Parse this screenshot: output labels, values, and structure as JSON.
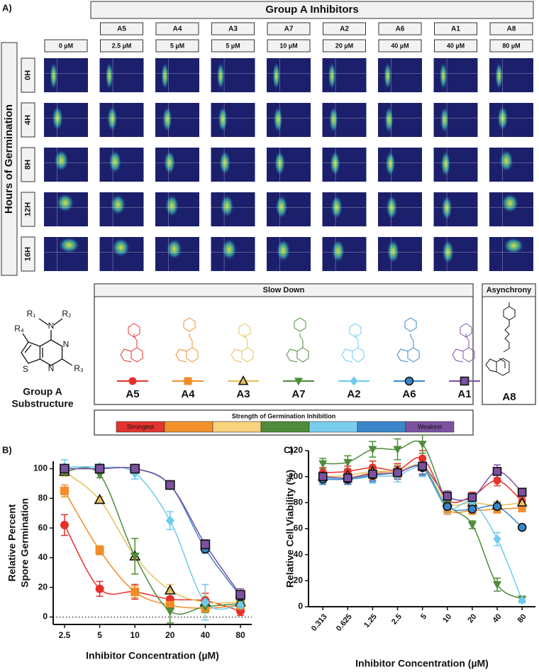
{
  "panel_a": {
    "label": "A)",
    "title": "Group A Inhibitors",
    "row_title": "Hours of Germination",
    "columns": [
      {
        "concentration": "0 µM"
      },
      {
        "inhibitor": "A5",
        "concentration": "2.5 µM"
      },
      {
        "inhibitor": "A4",
        "concentration": "5 µM"
      },
      {
        "inhibitor": "A3",
        "concentration": "5 µM"
      },
      {
        "inhibitor": "A7",
        "concentration": "10 µM"
      },
      {
        "inhibitor": "A2",
        "concentration": "20 µM"
      },
      {
        "inhibitor": "A6",
        "concentration": "40 µM"
      },
      {
        "inhibitor": "A1",
        "concentration": "40 µM"
      },
      {
        "inhibitor": "A8",
        "concentration": "80 µM"
      }
    ],
    "rows": [
      "0H",
      "4H",
      "8H",
      "12H",
      "16H"
    ]
  },
  "substructure": {
    "atoms": [
      "R₁",
      "N",
      "R₂",
      "R₄",
      "N",
      "S",
      "N",
      "R₃"
    ],
    "label": [
      "Group A",
      "Substructure"
    ]
  },
  "slow_down": {
    "title": "Slow Down",
    "compounds": [
      {
        "name": "A5",
        "color": "#e8302a",
        "marker": "circle"
      },
      {
        "name": "A4",
        "color": "#f28c28",
        "marker": "square"
      },
      {
        "name": "A3",
        "color": "#e6c25a",
        "marker": "triangle-up-outlined"
      },
      {
        "name": "A7",
        "color": "#4e8b3a",
        "marker": "triangle-down"
      },
      {
        "name": "A2",
        "color": "#6ccbef",
        "marker": "diamond"
      },
      {
        "name": "A6",
        "color": "#3a86c8",
        "marker": "circle-outlined"
      },
      {
        "name": "A1",
        "color": "#7c51a1",
        "marker": "square-outlined"
      }
    ]
  },
  "asynchrony": {
    "title": "Asynchrony",
    "compound": "A8"
  },
  "strength": {
    "title": "Strength of Germination Inhibition",
    "low": "Strongest",
    "high": "Weakest",
    "colors": [
      "#e3342f",
      "#f3922b",
      "#f8d27c",
      "#4e8b3a",
      "#7bcdef",
      "#3a86c8",
      "#7c51a1"
    ]
  },
  "chart_data": [
    {
      "type": "scatter",
      "label": "B)",
      "y_label": [
        "Relative Percent",
        "Spore Germination"
      ],
      "x_label": "Inhibitor Concentration (µM)",
      "x_scale": "log",
      "x": [
        2.5,
        5,
        10,
        20,
        40,
        80
      ],
      "xlim": [
        2,
        100
      ],
      "xticks": [
        2.5,
        5,
        10,
        20,
        40,
        80
      ],
      "ylim": [
        -5,
        105
      ],
      "yticks": [
        0,
        20,
        40,
        60,
        80,
        100
      ],
      "reference_line": {
        "y": 0,
        "style": "dotted"
      },
      "series": [
        {
          "name": "A5",
          "values": [
            62,
            19,
            17,
            12,
            11,
            4
          ],
          "errors": [
            7,
            5,
            5,
            4,
            5,
            3
          ]
        },
        {
          "name": "A4",
          "values": [
            85,
            45,
            17,
            8,
            6,
            8
          ],
          "errors": [
            4,
            3,
            4,
            3,
            3,
            3
          ]
        },
        {
          "name": "A3",
          "values": [
            98,
            79,
            41,
            18,
            10,
            10
          ],
          "errors": [
            3,
            2,
            12,
            4,
            4,
            3
          ]
        },
        {
          "name": "A7",
          "values": [
            98,
            96,
            41,
            4,
            7,
            9
          ],
          "errors": [
            2,
            2,
            12,
            8,
            4,
            4
          ]
        },
        {
          "name": "A2",
          "values": [
            101,
            101,
            97,
            65,
            10,
            8
          ],
          "errors": [
            5,
            2,
            4,
            6,
            12,
            4
          ]
        },
        {
          "name": "A6",
          "values": [
            100,
            100,
            100,
            89,
            46,
            14
          ],
          "errors": [
            2,
            2,
            2,
            2,
            3,
            3
          ]
        },
        {
          "name": "A1",
          "values": [
            100,
            100,
            100,
            89,
            49,
            15
          ],
          "errors": [
            2,
            2,
            2,
            2,
            3,
            4
          ]
        }
      ]
    },
    {
      "type": "scatter",
      "label": "C)",
      "y_label": [
        "Relative Cell Viability (%)"
      ],
      "x_label": "Inhibitor Concentration (µM)",
      "x_scale": "log",
      "x": [
        0.313,
        0.625,
        1.25,
        2.5,
        5,
        10,
        20,
        40,
        80
      ],
      "xlim": [
        0.21,
        116
      ],
      "xticks": [
        0.313,
        0.625,
        1.25,
        2.5,
        5,
        10,
        20,
        40,
        80
      ],
      "ylim": [
        0,
        120
      ],
      "yticks": [
        0,
        20,
        40,
        60,
        80,
        100,
        120
      ],
      "series": [
        {
          "name": "A5",
          "values": [
            103,
            104,
            107,
            105,
            114,
            82,
            85,
            97,
            81
          ],
          "errors": [
            4,
            4,
            5,
            5,
            6,
            4,
            3,
            4,
            3
          ]
        },
        {
          "name": "A4",
          "values": [
            100,
            99,
            103,
            104,
            107,
            75,
            74,
            75,
            76
          ],
          "errors": [
            4,
            4,
            5,
            5,
            6,
            4,
            3,
            3,
            3
          ]
        },
        {
          "name": "A3",
          "values": [
            100,
            101,
            104,
            104,
            108,
            80,
            80,
            78,
            80
          ],
          "errors": [
            4,
            4,
            5,
            5,
            6,
            4,
            3,
            3,
            3
          ]
        },
        {
          "name": "A7",
          "values": [
            110,
            111,
            121,
            121,
            125,
            80,
            63,
            17,
            6
          ],
          "errors": [
            4,
            5,
            6,
            8,
            7,
            4,
            3,
            5,
            2
          ]
        },
        {
          "name": "A2",
          "values": [
            99,
            98,
            100,
            101,
            106,
            76,
            80,
            52,
            5
          ],
          "errors": [
            4,
            4,
            5,
            5,
            6,
            4,
            3,
            5,
            2
          ]
        },
        {
          "name": "A6",
          "values": [
            98,
            98,
            101,
            103,
            107,
            77,
            75,
            77,
            61
          ],
          "errors": [
            4,
            4,
            5,
            5,
            6,
            4,
            3,
            3,
            2
          ]
        },
        {
          "name": "A1",
          "values": [
            100,
            99,
            102,
            103,
            108,
            85,
            84,
            104,
            88
          ],
          "errors": [
            4,
            4,
            5,
            5,
            6,
            4,
            3,
            5,
            3
          ]
        }
      ]
    }
  ]
}
